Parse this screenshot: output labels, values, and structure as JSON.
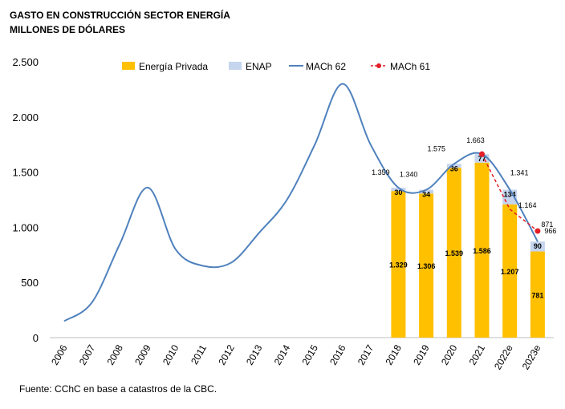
{
  "chart_data": {
    "type": "bar",
    "title": "GASTO EN CONSTRUCCIÓN SECTOR ENERGÍA",
    "subtitle": "MILLONES DE DÓLARES",
    "source": "Fuente: CChC en base a catastros de la CBC.",
    "categories": [
      "2006",
      "2007",
      "2008",
      "2009",
      "2010",
      "2011",
      "2012",
      "2013",
      "2014",
      "2015",
      "2016",
      "2017",
      "2018",
      "2019",
      "2020",
      "2021",
      "2022e",
      "2023e"
    ],
    "ylim": [
      0,
      2500
    ],
    "yticks": [
      0,
      500,
      1000,
      1500,
      2000,
      2500
    ],
    "ytick_labels": [
      "0",
      "500",
      "1.000",
      "1.500",
      "2.000",
      "2.500"
    ],
    "legend_placement": "top",
    "series": [
      {
        "name": "Energía Privada",
        "type": "bar",
        "color": "#FFC000",
        "values": [
          null,
          null,
          null,
          null,
          null,
          null,
          null,
          null,
          null,
          null,
          null,
          null,
          1329,
          1306,
          1539,
          1586,
          1207,
          781
        ],
        "labels": [
          "1.329",
          "1.306",
          "1.539",
          "1.586",
          "1.207",
          "781"
        ]
      },
      {
        "name": "ENAP",
        "type": "bar-stacked",
        "color": "#C5D5EE",
        "values": [
          null,
          null,
          null,
          null,
          null,
          null,
          null,
          null,
          null,
          null,
          null,
          null,
          30,
          34,
          36,
          77,
          134,
          90
        ],
        "labels": [
          "30",
          "34",
          "36",
          "77",
          "134",
          "90"
        ]
      },
      {
        "name": "MACh 62",
        "type": "line",
        "color": "#4F81BD",
        "values": [
          150,
          320,
          850,
          1360,
          800,
          650,
          680,
          950,
          1250,
          1750,
          2300,
          1750,
          1359,
          1340,
          1575,
          1663,
          1341,
          871
        ],
        "labels": [
          "1.359",
          "1.340",
          "1.575",
          "1.663",
          "1.341",
          "871"
        ]
      },
      {
        "name": "MACh 61",
        "type": "line-dashed",
        "color": "#E41E26",
        "values": [
          null,
          null,
          null,
          null,
          null,
          null,
          null,
          null,
          null,
          null,
          null,
          null,
          null,
          null,
          null,
          1663,
          1164,
          966
        ],
        "labels": [
          "1.164",
          "966"
        ]
      }
    ]
  }
}
